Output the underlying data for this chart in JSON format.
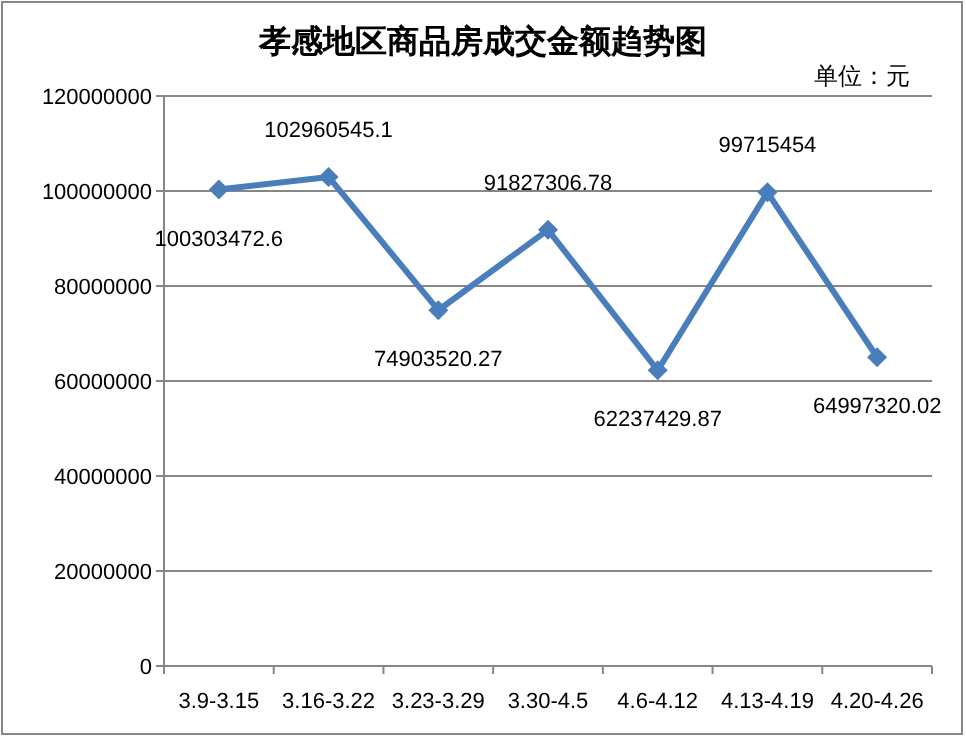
{
  "chart_data": {
    "type": "line",
    "title": "孝感地区商品房成交金额趋势图",
    "annotations": [
      "单位：元"
    ],
    "categories": [
      "3.9-3.15",
      "3.16-3.22",
      "3.23-3.29",
      "3.30-4.5",
      "4.6-4.12",
      "4.13-4.19",
      "4.20-4.26"
    ],
    "series": [
      {
        "color": "#4a7ebb",
        "values": [
          100303472.6,
          102960545.1,
          74903520.27,
          91827306.78,
          62237429.87,
          99715454,
          64997320.02
        ]
      }
    ],
    "ylim": [
      0,
      120000000
    ],
    "yticks": [
      0,
      20000000,
      40000000,
      60000000,
      80000000,
      100000000,
      120000000
    ],
    "grid": "y",
    "marker": "diamond",
    "data_labels": true
  }
}
